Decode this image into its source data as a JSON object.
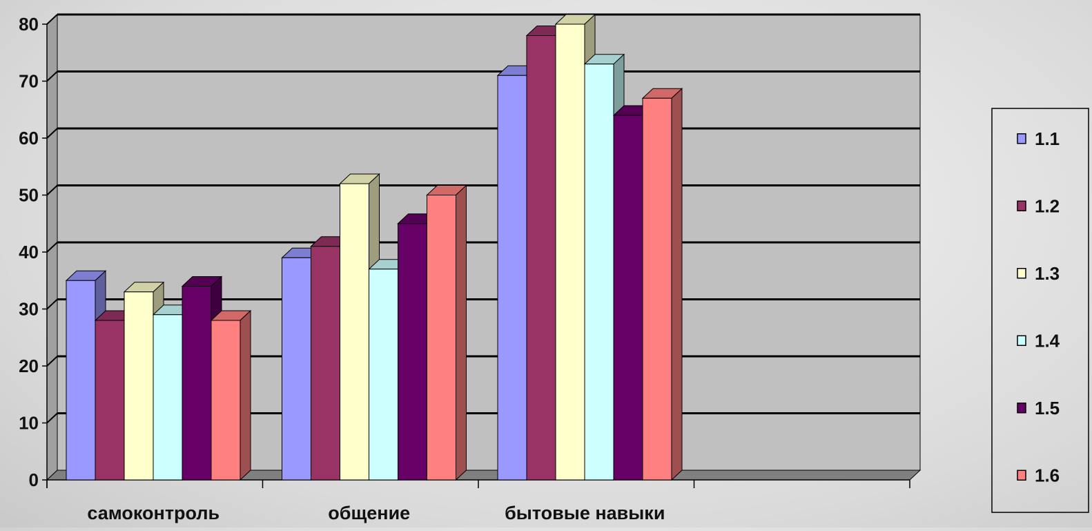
{
  "chart_data": {
    "type": "bar",
    "title": "",
    "xlabel": "",
    "ylabel": "",
    "categories": [
      "самоконтроль",
      "общение",
      "бытовые навыки",
      ""
    ],
    "series": [
      {
        "name": "1.1",
        "color": "#9999ff",
        "values": [
          35,
          39,
          71,
          null
        ]
      },
      {
        "name": "1.2",
        "color": "#993366",
        "values": [
          28,
          41,
          78,
          null
        ]
      },
      {
        "name": "1.3",
        "color": "#ffffcc",
        "values": [
          33,
          52,
          80,
          null
        ]
      },
      {
        "name": "1.4",
        "color": "#ccffff",
        "values": [
          29,
          37,
          73,
          null
        ]
      },
      {
        "name": "1.5",
        "color": "#660066",
        "values": [
          34,
          45,
          64,
          null
        ]
      },
      {
        "name": "1.6",
        "color": "#ff8080",
        "values": [
          28,
          50,
          67,
          null
        ]
      }
    ],
    "ylim": [
      0,
      80
    ],
    "yticks": [
      0,
      10,
      20,
      30,
      40,
      50,
      60,
      70,
      80
    ],
    "grid": true,
    "legend_position": "right",
    "style": "3d-clustered-column",
    "colors": {
      "wall": "#c0c0c0",
      "floor": "#808080",
      "gridline": "#000000"
    }
  }
}
